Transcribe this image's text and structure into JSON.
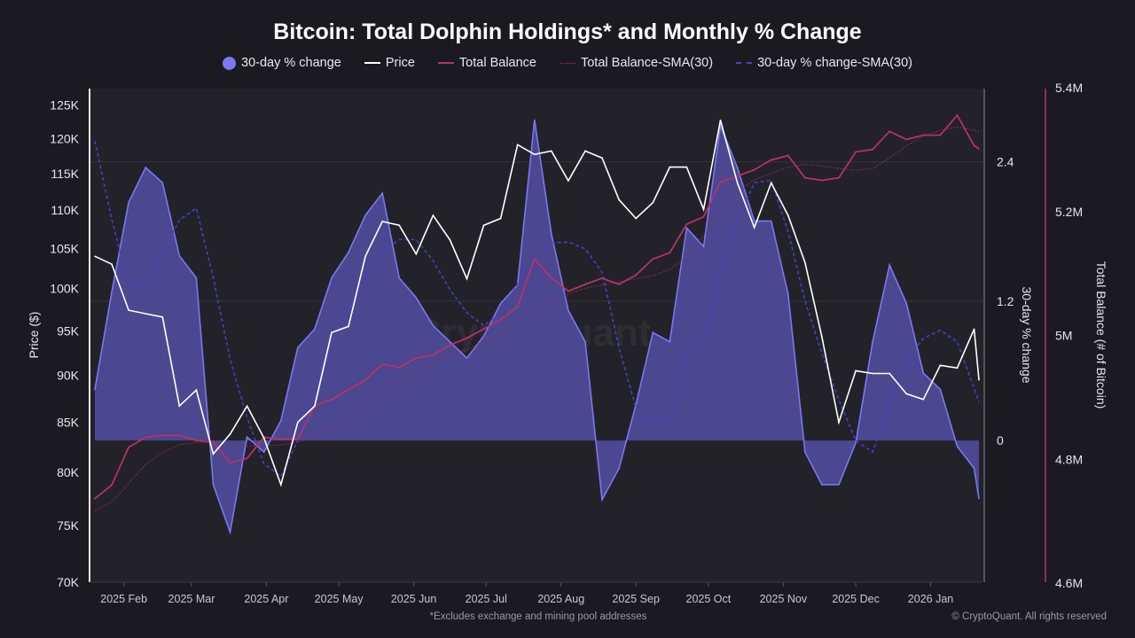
{
  "chart_data": {
    "type": "area+line",
    "title": "Bitcoin: Total Dolphin Holdings* and Monthly % Change",
    "legend": {
      "placement": "top",
      "items": [
        {
          "label": "30-day % change",
          "color": "#7b78f0",
          "style": "area"
        },
        {
          "label": "Price",
          "color": "#ffffff",
          "style": "line"
        },
        {
          "label": "Total Balance",
          "color": "#b5326a",
          "style": "line"
        },
        {
          "label": "Total Balance-SMA(30)",
          "color": "#a0305e",
          "style": "dotted"
        },
        {
          "label": "30-day % change-SMA(30)",
          "color": "#4a3fc8",
          "style": "dashed"
        }
      ]
    },
    "x": [
      "2025-01-20",
      "2025-01-27",
      "2025-02-03",
      "2025-02-10",
      "2025-02-17",
      "2025-02-24",
      "2025-03-03",
      "2025-03-10",
      "2025-03-17",
      "2025-03-24",
      "2025-03-31",
      "2025-04-07",
      "2025-04-14",
      "2025-04-21",
      "2025-04-28",
      "2025-05-05",
      "2025-05-12",
      "2025-05-19",
      "2025-05-26",
      "2025-06-02",
      "2025-06-09",
      "2025-06-16",
      "2025-06-23",
      "2025-06-30",
      "2025-07-07",
      "2025-07-14",
      "2025-07-21",
      "2025-07-28",
      "2025-08-04",
      "2025-08-11",
      "2025-08-18",
      "2025-08-25",
      "2025-09-01",
      "2025-09-08",
      "2025-09-15",
      "2025-09-22",
      "2025-09-29",
      "2025-10-06",
      "2025-10-13",
      "2025-10-20",
      "2025-10-27",
      "2025-11-03",
      "2025-11-10",
      "2025-11-17",
      "2025-11-24",
      "2025-12-01",
      "2025-12-08",
      "2025-12-15",
      "2025-12-22",
      "2025-12-29",
      "2026-01-05",
      "2026-01-12",
      "2026-01-19",
      "2026-01-21"
    ],
    "xrange": [
      "2025-01-20",
      "2026-01-21"
    ],
    "x_tick_labels": [
      "2025 Feb",
      "2025 Mar",
      "2025 Apr",
      "2025 May",
      "2025 Jun",
      "2025 Jul",
      "2025 Aug",
      "2025 Sep",
      "2025 Oct",
      "2025 Nov",
      "2025 Dec",
      "2026 Jan"
    ],
    "x_ticks": [
      "2025-02-01",
      "2025-03-01",
      "2025-04-01",
      "2025-05-01",
      "2025-06-01",
      "2025-07-01",
      "2025-08-01",
      "2025-09-01",
      "2025-10-01",
      "2025-11-01",
      "2025-12-01",
      "2026-01-01"
    ],
    "axes": {
      "price": {
        "label": "Price ($)",
        "side": "left",
        "scale": "log",
        "ylim": [
          70000,
          127500
        ],
        "ticks": [
          70000,
          75000,
          80000,
          85000,
          90000,
          95000,
          100000,
          105000,
          110000,
          115000,
          120000,
          125000
        ],
        "tick_labels": [
          "70K",
          "75K",
          "80K",
          "85K",
          "90K",
          "95K",
          "100K",
          "105K",
          "110K",
          "115K",
          "120K",
          "125K"
        ]
      },
      "pct": {
        "label": "30-day % change",
        "side": "right",
        "scale": "linear",
        "ylim": [
          -1.22,
          3.03
        ],
        "ticks": [
          0,
          1.2,
          2.4
        ],
        "tick_labels": [
          "0",
          "1.2",
          "2.4"
        ],
        "grid": true
      },
      "balance": {
        "label": "Total Balance (# of Bitcoin)",
        "side": "right-outer",
        "scale": "linear",
        "ylim": [
          4600000,
          5400000
        ],
        "ticks": [
          4600000,
          4800000,
          5000000,
          5200000,
          5400000
        ],
        "tick_labels": [
          "4.6M",
          "4.8M",
          "5M",
          "5.2M",
          "5.4M"
        ]
      }
    },
    "series": [
      {
        "name": "30-day % change",
        "axis": "pct",
        "type": "area",
        "values": [
          0.44,
          1.28,
          2.05,
          2.35,
          2.22,
          1.59,
          1.4,
          -0.38,
          -0.79,
          0.03,
          -0.1,
          0.17,
          0.8,
          0.96,
          1.4,
          1.62,
          1.94,
          2.13,
          1.4,
          1.23,
          0.99,
          0.85,
          0.71,
          0.9,
          1.18,
          1.34,
          2.76,
          1.78,
          1.12,
          0.85,
          -0.51,
          -0.24,
          0.31,
          0.93,
          0.85,
          1.83,
          1.67,
          2.71,
          2.35,
          1.89,
          1.89,
          1.26,
          -0.1,
          -0.38,
          -0.38,
          -0.02,
          0.85,
          1.51,
          1.18,
          0.58,
          0.44,
          -0.05,
          -0.24,
          -0.5
        ]
      },
      {
        "name": "Price",
        "axis": "price",
        "type": "line",
        "values": [
          104000,
          103000,
          97400,
          97000,
          96600,
          86700,
          88400,
          81800,
          83800,
          86700,
          83400,
          78800,
          85000,
          86700,
          94800,
          95500,
          104000,
          108500,
          108000,
          104300,
          109300,
          106100,
          101200,
          108000,
          108900,
          119100,
          117700,
          118200,
          114000,
          118200,
          117200,
          111400,
          108900,
          111000,
          115900,
          115900,
          110100,
          122700,
          113700,
          107700,
          113700,
          109300,
          103200,
          94300,
          85000,
          90500,
          90200,
          90200,
          88000,
          87400,
          91100,
          90800,
          95200,
          89500
        ]
      },
      {
        "name": "Total Balance",
        "axis": "balance",
        "type": "line",
        "values": [
          4735000,
          4757000,
          4818000,
          4834000,
          4837000,
          4837000,
          4829000,
          4826000,
          4793000,
          4800000,
          4834000,
          4831000,
          4831000,
          4885000,
          4895000,
          4911000,
          4926000,
          4952000,
          4947000,
          4962000,
          4967000,
          4983000,
          4994000,
          5009000,
          5024000,
          5045000,
          5122000,
          5091000,
          5070000,
          5081000,
          5091000,
          5081000,
          5096000,
          5122000,
          5132000,
          5178000,
          5190000,
          5246000,
          5256000,
          5266000,
          5282000,
          5289000,
          5253000,
          5249000,
          5253000,
          5295000,
          5299000,
          5328000,
          5315000,
          5322000,
          5322000,
          5354000,
          5305000,
          5300000
        ]
      },
      {
        "name": "Total Balance-SMA(30)",
        "axis": "balance",
        "type": "dotted",
        "values": [
          4715000,
          4730000,
          4760000,
          4790000,
          4810000,
          4822000,
          4826000,
          4826000,
          4822000,
          4820000,
          4820000,
          4822000,
          4826000,
          4835000,
          4850000,
          4870000,
          4890000,
          4910000,
          4925000,
          4940000,
          4952000,
          4965000,
          4975000,
          4990000,
          5000000,
          5020000,
          5040000,
          5055000,
          5065000,
          5075000,
          5080000,
          5085000,
          5090000,
          5095000,
          5105000,
          5125000,
          5160000,
          5200000,
          5230000,
          5250000,
          5260000,
          5270000,
          5275000,
          5272000,
          5268000,
          5265000,
          5268000,
          5285000,
          5305000,
          5320000,
          5330000,
          5335000,
          5330000,
          5328000
        ]
      },
      {
        "name": "30-day % change-SMA(30)",
        "axis": "pct",
        "type": "dashed",
        "values": [
          2.58,
          1.9,
          1.35,
          1.28,
          1.6,
          1.9,
          2.0,
          1.4,
          0.7,
          0.2,
          -0.2,
          -0.31,
          0.0,
          0.44,
          0.8,
          1.1,
          1.4,
          1.62,
          1.73,
          1.73,
          1.55,
          1.3,
          1.1,
          0.99,
          1.1,
          1.35,
          1.55,
          1.7,
          1.71,
          1.65,
          1.45,
          0.8,
          0.28,
          0.17,
          0.18,
          0.7,
          0.85,
          1.4,
          1.9,
          2.22,
          2.24,
          1.8,
          1.2,
          0.75,
          0.35,
          0.0,
          -0.1,
          0.3,
          0.7,
          0.88,
          0.95,
          0.85,
          0.45,
          0.33
        ]
      }
    ],
    "footnote": "*Excludes exchange and mining pool addresses",
    "copyright": "© CryptoQuant. All rights reserved",
    "watermark": "CryptoQuant"
  }
}
